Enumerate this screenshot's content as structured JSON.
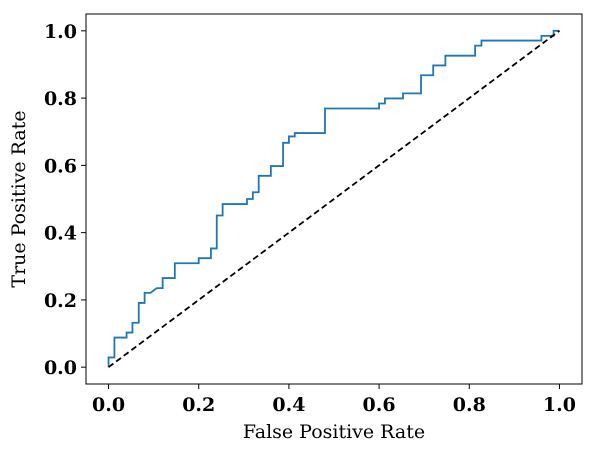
{
  "chart_data": {
    "type": "line",
    "title": "",
    "xlabel": "False Positive Rate",
    "ylabel": "True Positive Rate",
    "xlim": [
      -0.05,
      1.05
    ],
    "ylim": [
      -0.05,
      1.05
    ],
    "xticks": [
      0.0,
      0.2,
      0.4,
      0.6,
      0.8,
      1.0
    ],
    "yticks": [
      0.0,
      0.2,
      0.4,
      0.6,
      0.8,
      1.0
    ],
    "xtick_labels": [
      "0.0",
      "0.2",
      "0.4",
      "0.6",
      "0.8",
      "1.0"
    ],
    "ytick_labels": [
      "0.0",
      "0.2",
      "0.4",
      "0.6",
      "0.8",
      "1.0"
    ],
    "grid": false,
    "legend": "none",
    "series": [
      {
        "color": "#1f77b4",
        "style": "solid",
        "x": [
          0.0,
          0.0,
          0.013,
          0.013,
          0.04,
          0.04,
          0.053,
          0.053,
          0.067,
          0.067,
          0.08,
          0.08,
          0.093,
          0.093,
          0.107,
          0.12,
          0.12,
          0.147,
          0.147,
          0.2,
          0.2,
          0.227,
          0.227,
          0.24,
          0.24,
          0.253,
          0.253,
          0.267,
          0.267,
          0.307,
          0.307,
          0.32,
          0.32,
          0.333,
          0.333,
          0.36,
          0.36,
          0.387,
          0.387,
          0.4,
          0.4,
          0.413,
          0.413,
          0.48,
          0.48,
          0.6,
          0.6,
          0.613,
          0.613,
          0.653,
          0.653,
          0.693,
          0.693,
          0.72,
          0.72,
          0.747,
          0.747,
          0.813,
          0.813,
          0.827,
          0.827,
          0.96,
          0.96,
          0.987,
          0.987,
          1.0
        ],
        "y": [
          0.0,
          0.029,
          0.029,
          0.088,
          0.088,
          0.103,
          0.103,
          0.132,
          0.132,
          0.191,
          0.191,
          0.221,
          0.221,
          0.221,
          0.235,
          0.235,
          0.265,
          0.265,
          0.309,
          0.309,
          0.324,
          0.324,
          0.353,
          0.353,
          0.451,
          0.451,
          0.485,
          0.485,
          0.485,
          0.485,
          0.5,
          0.5,
          0.52,
          0.52,
          0.569,
          0.569,
          0.598,
          0.598,
          0.667,
          0.667,
          0.686,
          0.686,
          0.696,
          0.696,
          0.769,
          0.769,
          0.784,
          0.784,
          0.799,
          0.799,
          0.814,
          0.814,
          0.868,
          0.868,
          0.897,
          0.897,
          0.926,
          0.926,
          0.956,
          0.956,
          0.971,
          0.971,
          0.985,
          0.985,
          1.0,
          1.0
        ]
      },
      {
        "color": "#000000",
        "style": "dashed",
        "x": [
          0.0,
          1.0
        ],
        "y": [
          0.0,
          1.0
        ]
      }
    ]
  }
}
